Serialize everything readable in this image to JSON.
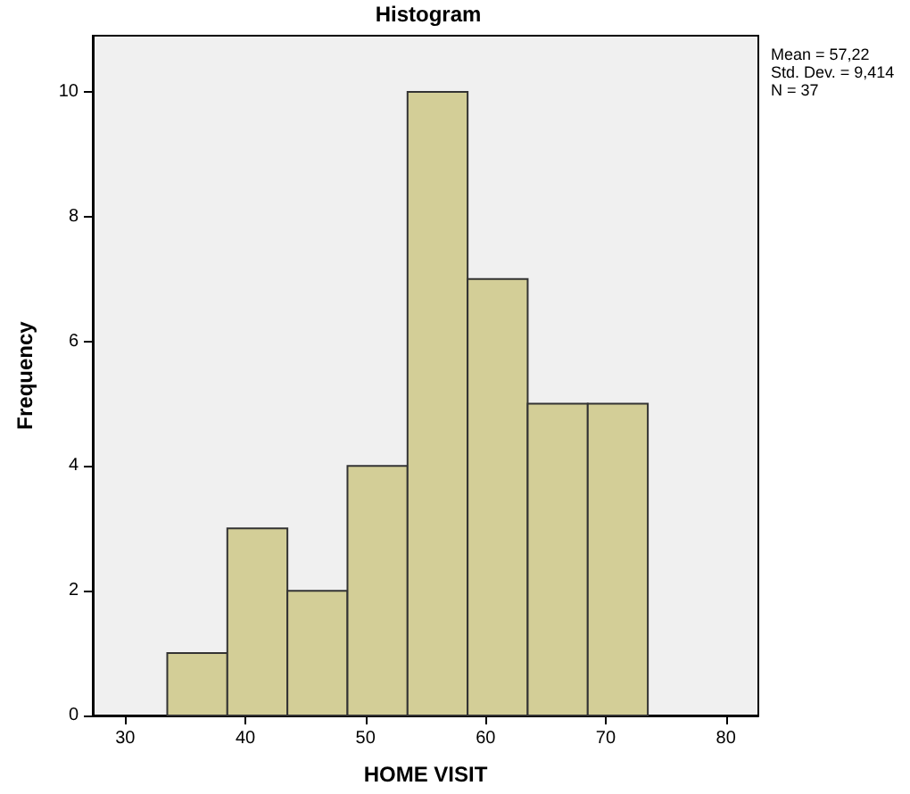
{
  "chart_data": {
    "type": "histogram",
    "title": "Histogram",
    "xlabel": "HOME VISIT",
    "ylabel": "Frequency",
    "bins": [
      33.5,
      38.5,
      43.5,
      48.5,
      53.5,
      58.5,
      63.5,
      68.5,
      73.5
    ],
    "values": [
      1,
      3,
      2,
      4,
      10,
      7,
      5,
      5
    ],
    "color": "#d3ce97",
    "xlim": [
      27.3,
      82.7
    ],
    "xticks": [
      30,
      40,
      50,
      60,
      70,
      80
    ],
    "ylim": [
      0,
      10.9
    ],
    "yticks": [
      0,
      2,
      4,
      6,
      8,
      10
    ],
    "grid": false,
    "annotations": [
      "Mean = 57,22",
      "Std. Dev. = 9,414",
      "N = 37"
    ]
  }
}
